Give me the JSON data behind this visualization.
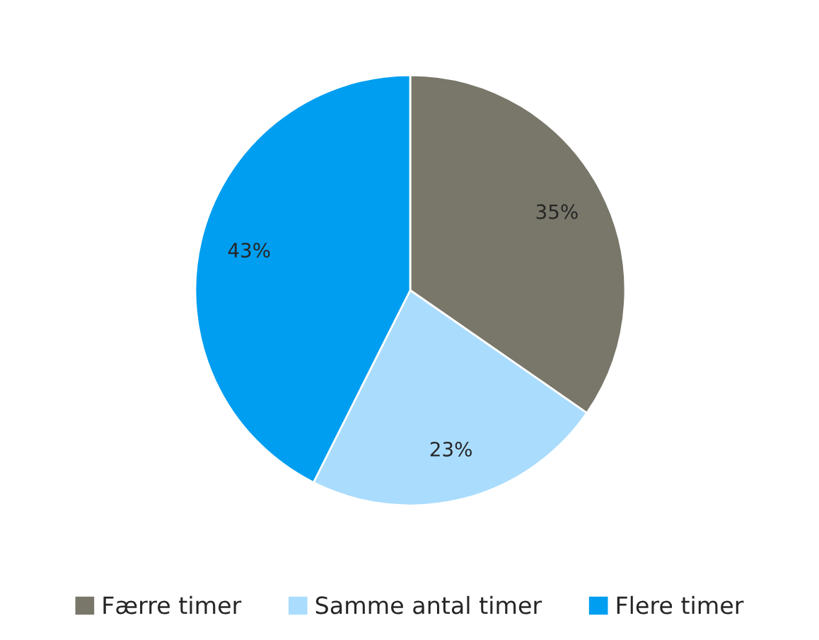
{
  "chart_data": {
    "type": "pie",
    "categories": [
      "Færre timer",
      "Samme antal timer",
      "Flere timer"
    ],
    "values": [
      35,
      23,
      43
    ],
    "colors": [
      "#78776a",
      "#aadcfd",
      "#009ef0"
    ],
    "value_labels": [
      "35%",
      "23%",
      "43%"
    ],
    "legend": "bottom"
  }
}
